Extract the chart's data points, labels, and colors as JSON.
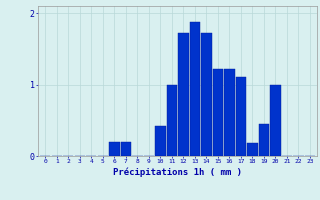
{
  "hours": [
    0,
    1,
    2,
    3,
    4,
    5,
    6,
    7,
    8,
    9,
    10,
    11,
    12,
    13,
    14,
    15,
    16,
    17,
    18,
    19,
    20,
    21,
    22,
    23
  ],
  "values": [
    0,
    0,
    0,
    0,
    0,
    0,
    0.2,
    0.2,
    0,
    0,
    0.42,
    1.0,
    1.72,
    1.87,
    1.72,
    1.22,
    1.22,
    1.1,
    0.18,
    0.45,
    1.0,
    0,
    0,
    0
  ],
  "bar_color": "#0033cc",
  "bar_edge_color": "#001a99",
  "background_color": "#d9f0f0",
  "grid_color": "#b8d8d8",
  "text_color": "#0000aa",
  "xlabel": "Précipitations 1h ( mm )",
  "ylim": [
    0,
    2.1
  ],
  "yticks": [
    0,
    1,
    2
  ],
  "xlim": [
    -0.6,
    23.6
  ],
  "figsize": [
    3.2,
    2.0
  ],
  "dpi": 100
}
